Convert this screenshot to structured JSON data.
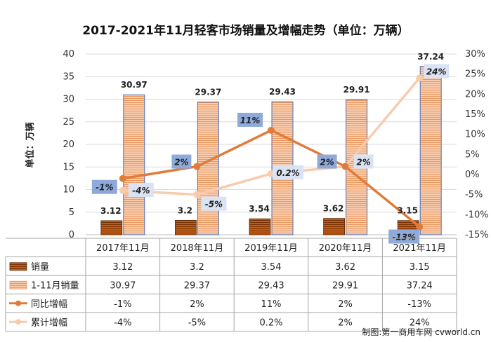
{
  "chart_data": {
    "type": "bar",
    "title": "2017-2021年11月轻客市场销量及增幅走势（单位：万辆）",
    "ylabel": "单位：万辆",
    "categories": [
      "2017年11月",
      "2018年11月",
      "2019年11月",
      "2020年11月",
      "2021年11月"
    ],
    "ylim": [
      0,
      40
    ],
    "yticks": [
      "0",
      "5",
      "10",
      "15",
      "20",
      "25",
      "30",
      "35",
      "40"
    ],
    "y2lim": [
      -15,
      30
    ],
    "y2ticks": [
      "-15%",
      "-10%",
      "-5%",
      "0%",
      "5%",
      "10%",
      "15%",
      "20%",
      "25%",
      "30%"
    ],
    "series": [
      {
        "name": "销量",
        "type": "bar",
        "values": [
          3.12,
          3.2,
          3.54,
          3.62,
          3.15
        ],
        "labels": [
          "3.12",
          "3.2",
          "3.54",
          "3.62",
          "3.15"
        ],
        "color": "#c55a11"
      },
      {
        "name": "1-11月销量",
        "type": "bar",
        "values": [
          30.97,
          29.37,
          29.43,
          29.91,
          37.24
        ],
        "labels": [
          "30.97",
          "29.37",
          "29.43",
          "29.91",
          "37.24"
        ],
        "color": "#f4b183"
      },
      {
        "name": "同比增幅",
        "type": "line",
        "axis": "right",
        "values": [
          -1,
          2,
          11,
          2,
          -13
        ],
        "labels": [
          "-1%",
          "2%",
          "11%",
          "2%",
          "-13%"
        ],
        "color": "#e07b39"
      },
      {
        "name": "累计增幅",
        "type": "line",
        "axis": "right",
        "values": [
          -4,
          -5,
          0.2,
          2,
          24
        ],
        "labels": [
          "-4%",
          "-5%",
          "0.2%",
          "2%",
          "24%"
        ],
        "color": "#f8cbad"
      }
    ],
    "source": "制图:第一商用车网 cvworld.cn"
  }
}
